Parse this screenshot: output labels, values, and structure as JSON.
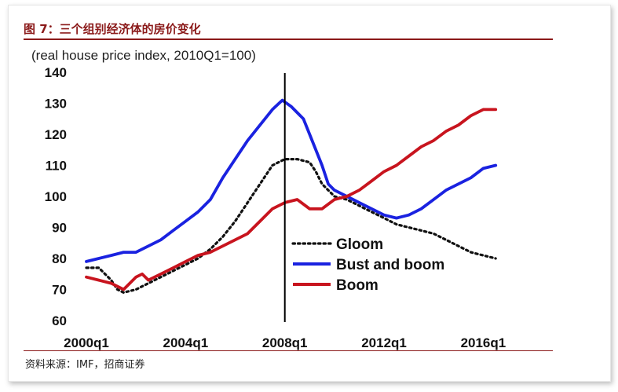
{
  "figure": {
    "title": "图 7：三个组别经济体的房价变化",
    "source": "资料来源：IMF，招商证券"
  },
  "colors": {
    "title": "#8b1a1a",
    "gloom": "#111111",
    "bust_and_boom": "#1a22e0",
    "boom": "#c8141e"
  },
  "chart_data": {
    "type": "line",
    "title": "图 7：三个组别经济体的房价变化",
    "ylabel": "(real house price index, 2010Q1=100)",
    "xlabel": "",
    "x_range": [
      2000.0,
      2017.0
    ],
    "ylim": [
      60,
      140
    ],
    "yticks": [
      60,
      70,
      80,
      90,
      100,
      110,
      120,
      130,
      140
    ],
    "xticks": [
      {
        "label": "2000q1",
        "value": 2000.0
      },
      {
        "label": "2004q1",
        "value": 2004.0
      },
      {
        "label": "2008q1",
        "value": 2008.0
      },
      {
        "label": "2012q1",
        "value": 2012.0
      },
      {
        "label": "2016q1",
        "value": 2016.0
      }
    ],
    "vertical_line": {
      "x": 2008.0
    },
    "grid": false,
    "legend_position": "lower-right",
    "series": [
      {
        "name": "Gloom",
        "color": "#111111",
        "style": "dotted",
        "points": [
          [
            2000.0,
            77
          ],
          [
            2000.5,
            77
          ],
          [
            2001.0,
            73
          ],
          [
            2001.25,
            70
          ],
          [
            2001.5,
            69
          ],
          [
            2002.0,
            70
          ],
          [
            2002.5,
            72
          ],
          [
            2003.0,
            74
          ],
          [
            2003.5,
            76
          ],
          [
            2004.0,
            78
          ],
          [
            2004.5,
            80
          ],
          [
            2005.0,
            83
          ],
          [
            2005.5,
            87
          ],
          [
            2006.0,
            92
          ],
          [
            2006.5,
            98
          ],
          [
            2007.0,
            104
          ],
          [
            2007.5,
            110
          ],
          [
            2008.0,
            112
          ],
          [
            2008.5,
            112
          ],
          [
            2009.0,
            111
          ],
          [
            2009.25,
            108
          ],
          [
            2009.5,
            104
          ],
          [
            2010.0,
            100
          ],
          [
            2010.5,
            99
          ],
          [
            2011.0,
            97
          ],
          [
            2011.5,
            95
          ],
          [
            2012.0,
            93
          ],
          [
            2012.5,
            91
          ],
          [
            2013.0,
            90
          ],
          [
            2013.5,
            89
          ],
          [
            2014.0,
            88
          ],
          [
            2014.5,
            86
          ],
          [
            2015.0,
            84
          ],
          [
            2015.5,
            82
          ],
          [
            2016.0,
            81
          ],
          [
            2016.5,
            80
          ]
        ]
      },
      {
        "name": "Bust and boom",
        "color": "#1a22e0",
        "style": "solid",
        "points": [
          [
            2000.0,
            79
          ],
          [
            2000.5,
            80
          ],
          [
            2001.0,
            81
          ],
          [
            2001.5,
            82
          ],
          [
            2002.0,
            82
          ],
          [
            2002.5,
            84
          ],
          [
            2003.0,
            86
          ],
          [
            2003.5,
            89
          ],
          [
            2004.0,
            92
          ],
          [
            2004.5,
            95
          ],
          [
            2005.0,
            99
          ],
          [
            2005.5,
            106
          ],
          [
            2006.0,
            112
          ],
          [
            2006.5,
            118
          ],
          [
            2007.0,
            123
          ],
          [
            2007.5,
            128
          ],
          [
            2007.9,
            131
          ],
          [
            2008.25,
            129
          ],
          [
            2008.75,
            125
          ],
          [
            2009.0,
            120
          ],
          [
            2009.5,
            110
          ],
          [
            2009.75,
            104
          ],
          [
            2010.0,
            102
          ],
          [
            2010.5,
            100
          ],
          [
            2011.0,
            98
          ],
          [
            2011.5,
            96
          ],
          [
            2012.0,
            94
          ],
          [
            2012.5,
            93
          ],
          [
            2013.0,
            94
          ],
          [
            2013.5,
            96
          ],
          [
            2014.0,
            99
          ],
          [
            2014.5,
            102
          ],
          [
            2015.0,
            104
          ],
          [
            2015.5,
            106
          ],
          [
            2016.0,
            109
          ],
          [
            2016.5,
            110
          ]
        ]
      },
      {
        "name": "Boom",
        "color": "#c8141e",
        "style": "solid",
        "points": [
          [
            2000.0,
            74
          ],
          [
            2000.5,
            73
          ],
          [
            2001.0,
            72
          ],
          [
            2001.5,
            70
          ],
          [
            2002.0,
            74
          ],
          [
            2002.25,
            75
          ],
          [
            2002.5,
            73
          ],
          [
            2003.0,
            75
          ],
          [
            2003.5,
            77
          ],
          [
            2004.0,
            79
          ],
          [
            2004.5,
            81
          ],
          [
            2005.0,
            82
          ],
          [
            2005.5,
            84
          ],
          [
            2006.0,
            86
          ],
          [
            2006.5,
            88
          ],
          [
            2007.0,
            92
          ],
          [
            2007.5,
            96
          ],
          [
            2008.0,
            98
          ],
          [
            2008.5,
            99
          ],
          [
            2009.0,
            96
          ],
          [
            2009.5,
            96
          ],
          [
            2010.0,
            99
          ],
          [
            2010.5,
            100
          ],
          [
            2011.0,
            102
          ],
          [
            2011.5,
            105
          ],
          [
            2012.0,
            108
          ],
          [
            2012.5,
            110
          ],
          [
            2013.0,
            113
          ],
          [
            2013.5,
            116
          ],
          [
            2014.0,
            118
          ],
          [
            2014.5,
            121
          ],
          [
            2015.0,
            123
          ],
          [
            2015.5,
            126
          ],
          [
            2016.0,
            128
          ],
          [
            2016.5,
            128
          ]
        ]
      }
    ]
  }
}
